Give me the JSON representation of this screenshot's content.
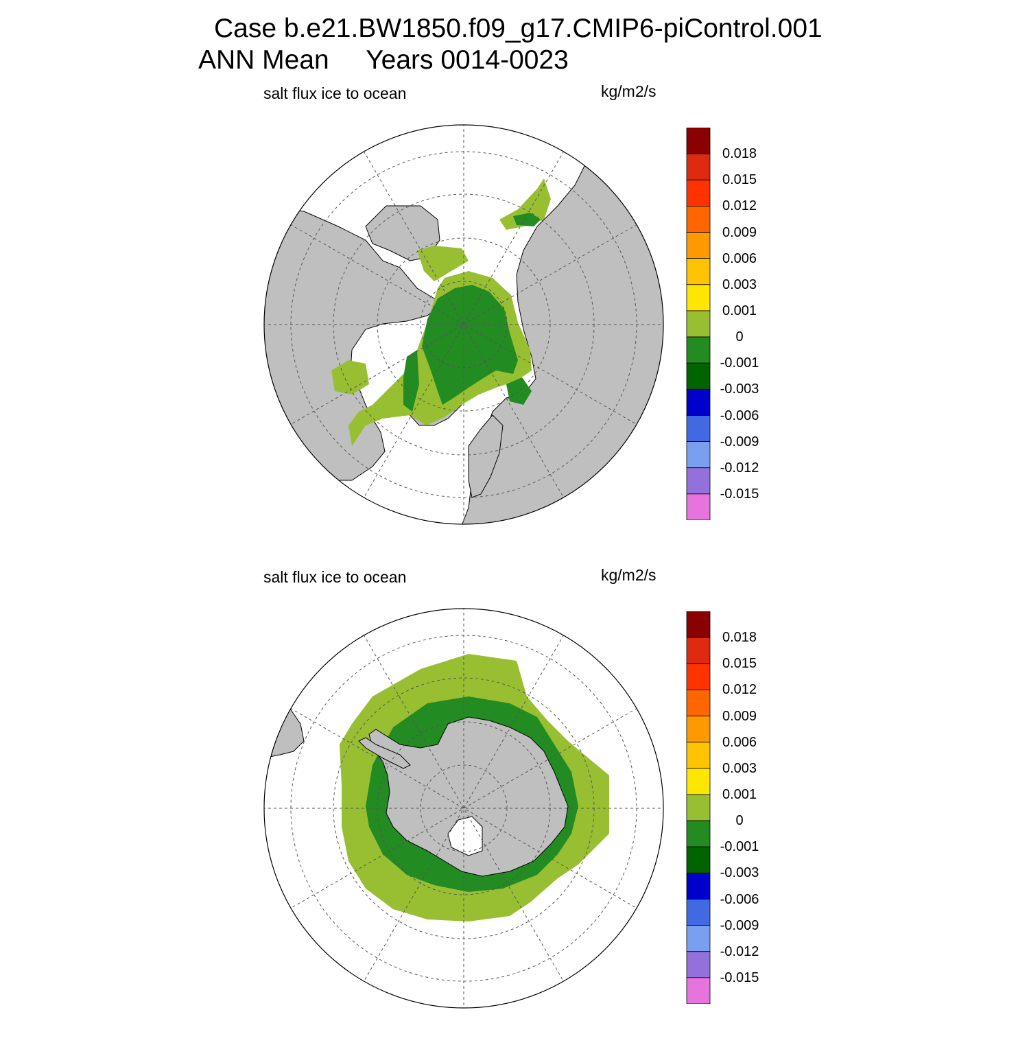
{
  "title": {
    "line1": "Case b.e21.BW1850.f09_g17.CMIP6-piControl.001",
    "line2": "ANN Mean     Years 0014-0023"
  },
  "colors": {
    "land": "#bfbfbf",
    "ocean": "#ffffff",
    "grid": "#555555",
    "outline": "#000000"
  },
  "colorbar": {
    "levels": [
      "0.018",
      "0.015",
      "0.012",
      "0.009",
      "0.006",
      "0.003",
      "0.001",
      "0",
      "-0.001",
      "-0.003",
      "-0.006",
      "-0.009",
      "-0.012",
      "-0.015"
    ],
    "colors": [
      "#8b0000",
      "#dd2a10",
      "#ff3300",
      "#ff6600",
      "#ff9900",
      "#ffc300",
      "#ffe600",
      "#98bf31",
      "#228b22",
      "#006400",
      "#0000cc",
      "#4169e1",
      "#7b9ff0",
      "#9370db",
      "#e673de"
    ]
  },
  "panels": [
    {
      "id": "north",
      "hemisphere": "Northern Hemisphere",
      "variable": "salt flux ice to ocean",
      "units": "kg/m2/s"
    },
    {
      "id": "south",
      "hemisphere": "Southern Hemisphere",
      "variable": "salt flux ice to ocean",
      "units": "kg/m2/s"
    }
  ]
}
